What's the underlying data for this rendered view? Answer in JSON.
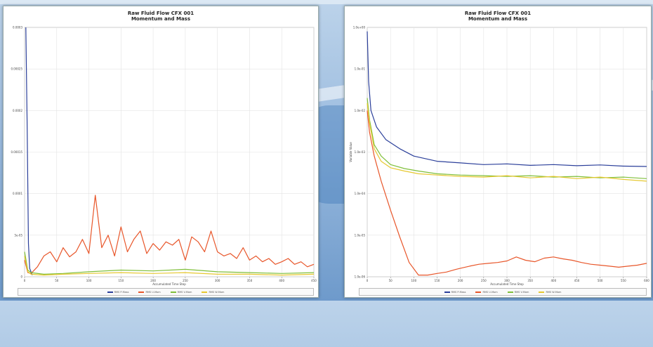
{
  "chart_data": [
    {
      "type": "line",
      "title": "Raw Fluid Flow CFX 001",
      "subtitle": "Momentum and Mass",
      "xlabel": "Accumulated Time Step",
      "ylabel": "",
      "xlim": [
        0,
        450
      ],
      "ylim": [
        0,
        0.0003
      ],
      "grid": true,
      "legend_position": "bottom",
      "xticks": [
        "0",
        "50",
        "100",
        "150",
        "200",
        "250",
        "300",
        "350",
        "400",
        "450"
      ],
      "yticks": [
        "0.0003",
        "0.00025",
        "0.0002",
        "0.00015",
        "0.0001",
        "5e-05",
        "0"
      ],
      "series": [
        {
          "name": "RMS P-Mass",
          "color": "#2b3f9a",
          "x": [
            2,
            4,
            6,
            8,
            12
          ],
          "y": [
            0.0003,
            0.00018,
            4e-05,
            1e-05,
            2e-06
          ]
        },
        {
          "name": "RMS U-Mom",
          "color": "#e8562a",
          "x": [
            0,
            5,
            10,
            20,
            30,
            40,
            50,
            60,
            70,
            80,
            90,
            100,
            110,
            120,
            130,
            140,
            150,
            160,
            170,
            180,
            190,
            200,
            210,
            220,
            230,
            240,
            250,
            260,
            270,
            280,
            290,
            300,
            310,
            320,
            330,
            340,
            350,
            360,
            370,
            380,
            390,
            400,
            410,
            420,
            430,
            440,
            450
          ],
          "y": [
            2e-05,
            5e-06,
            4e-06,
            1.2e-05,
            2.5e-05,
            3e-05,
            1.8e-05,
            3.5e-05,
            2.4e-05,
            3e-05,
            4.5e-05,
            2.8e-05,
            9.8e-05,
            3.5e-05,
            5e-05,
            2.5e-05,
            6e-05,
            3e-05,
            4.5e-05,
            5.5e-05,
            2.8e-05,
            4e-05,
            3.2e-05,
            4.2e-05,
            3.8e-05,
            4.5e-05,
            2e-05,
            4.8e-05,
            4.2e-05,
            3e-05,
            5.5e-05,
            3e-05,
            2.5e-05,
            2.8e-05,
            2.2e-05,
            3.5e-05,
            2e-05,
            2.5e-05,
            1.8e-05,
            2.2e-05,
            1.5e-05,
            1.8e-05,
            2.2e-05,
            1.5e-05,
            1.8e-05,
            1.2e-05,
            1.5e-05
          ]
        },
        {
          "name": "RMS V-Mom",
          "color": "#7fbf3a",
          "x": [
            0,
            5,
            10,
            30,
            60,
            100,
            150,
            200,
            250,
            300,
            350,
            400,
            450
          ],
          "y": [
            3e-05,
            8e-06,
            5e-06,
            3e-06,
            4e-06,
            6e-06,
            8e-06,
            7e-06,
            9e-06,
            6e-06,
            5e-06,
            4e-06,
            5e-06
          ]
        },
        {
          "name": "RMS W-Mom",
          "color": "#e6c830",
          "x": [
            0,
            5,
            10,
            30,
            60,
            100,
            150,
            200,
            250,
            300,
            350,
            400,
            450
          ],
          "y": [
            2.5e-05,
            6e-06,
            3e-06,
            2e-06,
            3e-06,
            4e-06,
            5e-06,
            4e-06,
            5e-06,
            3e-06,
            3e-06,
            2e-06,
            3e-06
          ]
        }
      ]
    },
    {
      "type": "line",
      "title": "Raw Fluid Flow CFX 001",
      "subtitle": "Momentum and Mass",
      "xlabel": "Accumulated Time Step",
      "ylabel": "Variable Value",
      "xlim": [
        0,
        600
      ],
      "ylim": [
        1e-06,
        1
      ],
      "log_scale_y": true,
      "grid": true,
      "legend_position": "bottom",
      "xticks": [
        "0",
        "50",
        "100",
        "150",
        "200",
        "250",
        "300",
        "350",
        "400",
        "450",
        "500",
        "550",
        "600"
      ],
      "yticks": [
        "1.0e+00",
        "1.0e-01",
        "1.0e-02",
        "1.0e-03",
        "1.0e-04",
        "1.0e-05",
        "1.0e-06"
      ],
      "series": [
        {
          "name": "RMS P-Mass",
          "color": "#2b3f9a",
          "x": [
            0,
            3,
            8,
            20,
            40,
            70,
            100,
            150,
            200,
            250,
            300,
            350,
            400,
            450,
            500,
            550,
            600
          ],
          "y": [
            0.8,
            0.05,
            0.01,
            0.004,
            0.002,
            0.0012,
            0.0008,
            0.0006,
            0.00055,
            0.0005,
            0.00052,
            0.00048,
            0.0005,
            0.00047,
            0.00049,
            0.00046,
            0.00045
          ]
        },
        {
          "name": "RMS U-Mom",
          "color": "#e8562a",
          "x": [
            0,
            5,
            15,
            30,
            50,
            70,
            90,
            110,
            130,
            150,
            170,
            190,
            200,
            220,
            240,
            260,
            280,
            300,
            320,
            340,
            360,
            380,
            400,
            420,
            440,
            460,
            480,
            500,
            520,
            540,
            560,
            580,
            600
          ],
          "y": [
            0.01,
            0.003,
            0.0008,
            0.0002,
            4e-05,
            9e-06,
            2.2e-06,
            1.1e-06,
            1.1e-06,
            1.2e-06,
            1.3e-06,
            1.5e-06,
            1.6e-06,
            1.8e-06,
            2e-06,
            2.1e-06,
            2.2e-06,
            2.4e-06,
            3e-06,
            2.5e-06,
            2.3e-06,
            2.8e-06,
            3e-06,
            2.7e-06,
            2.5e-06,
            2.2e-06,
            2e-06,
            1.9e-06,
            1.8e-06,
            1.7e-06,
            1.8e-06,
            1.9e-06,
            2.1e-06
          ]
        },
        {
          "name": "RMS V-Mom",
          "color": "#7fbf3a",
          "x": [
            0,
            5,
            15,
            30,
            50,
            80,
            110,
            150,
            200,
            250,
            300,
            350,
            400,
            450,
            500,
            550,
            600
          ],
          "y": [
            0.02,
            0.006,
            0.0015,
            0.0008,
            0.0005,
            0.0004,
            0.00035,
            0.0003,
            0.00028,
            0.00027,
            0.00026,
            0.00027,
            0.00025,
            0.00026,
            0.00024,
            0.00025,
            0.00023
          ]
        },
        {
          "name": "RMS W-Mom",
          "color": "#e6c830",
          "x": [
            0,
            5,
            15,
            30,
            50,
            80,
            110,
            150,
            200,
            250,
            300,
            350,
            400,
            450,
            500,
            550,
            600
          ],
          "y": [
            0.015,
            0.005,
            0.0012,
            0.0006,
            0.00042,
            0.00035,
            0.0003,
            0.00028,
            0.00026,
            0.00025,
            0.00027,
            0.00024,
            0.00026,
            0.00023,
            0.00025,
            0.00022,
            0.0002
          ]
        }
      ]
    }
  ]
}
